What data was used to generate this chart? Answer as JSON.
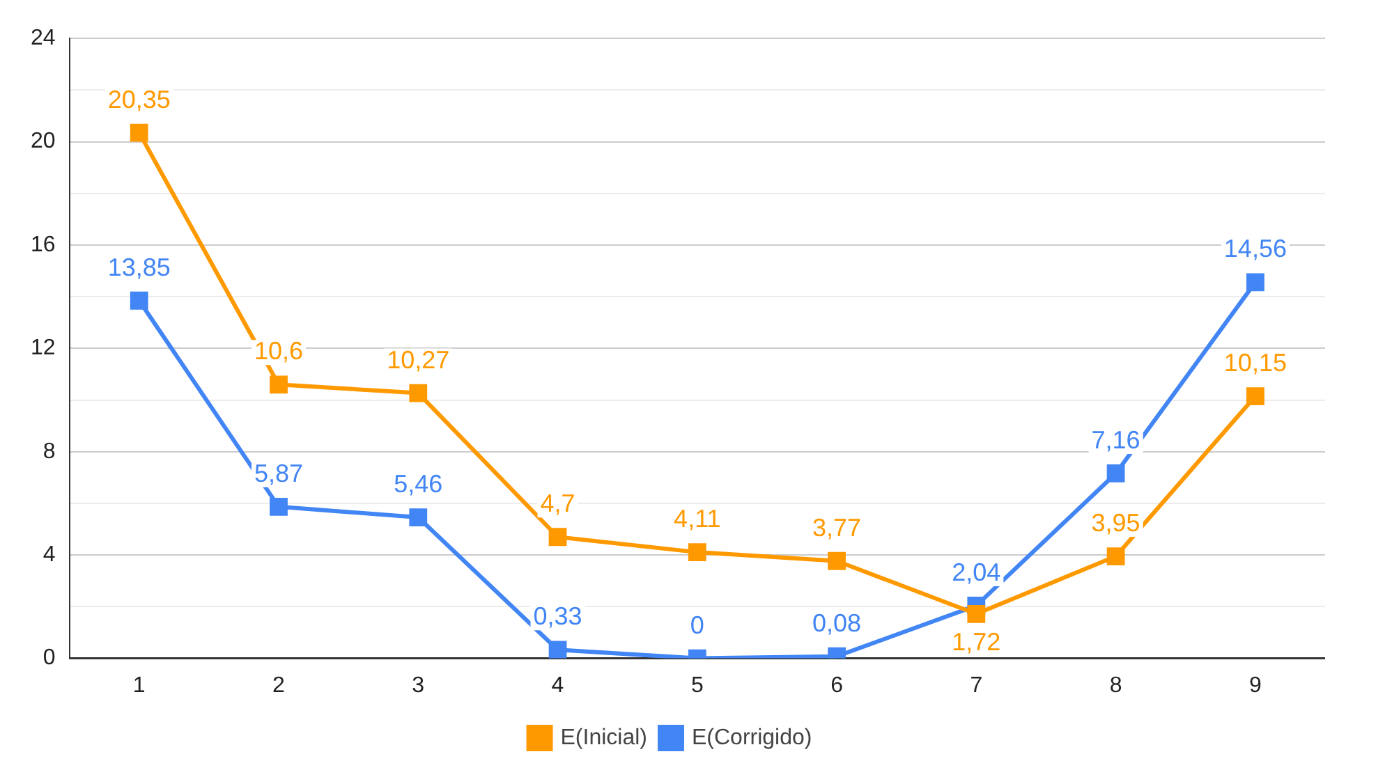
{
  "chart_data": {
    "type": "line",
    "categories": [
      "1",
      "2",
      "3",
      "4",
      "5",
      "6",
      "7",
      "8",
      "9"
    ],
    "series": [
      {
        "name": "E(Inicial)",
        "color": "#ff9900",
        "values": [
          20.35,
          10.6,
          10.27,
          4.7,
          4.11,
          3.77,
          1.72,
          3.95,
          10.15
        ],
        "value_labels": [
          "20,35",
          "10,6",
          "10,27",
          "4,7",
          "4,11",
          "3,77",
          "1,72",
          "3,95",
          "10,15"
        ]
      },
      {
        "name": "E(Corrigido)",
        "color": "#4285f4",
        "values": [
          13.85,
          5.87,
          5.46,
          0.33,
          0,
          0.08,
          2.04,
          7.16,
          14.56
        ],
        "value_labels": [
          "13,85",
          "5,87",
          "5,46",
          "0,33",
          "0",
          "0,08",
          "2,04",
          "7,16",
          "14,56"
        ]
      }
    ],
    "ylim": [
      0,
      24
    ],
    "yticks": [
      0,
      {
        "value": 2,
        "label": null
      },
      4,
      {
        "value": 6,
        "label": null
      },
      8,
      {
        "value": 10,
        "label": null
      },
      12,
      {
        "value": 14,
        "label": null
      },
      16,
      {
        "value": 18,
        "label": null
      },
      20,
      {
        "value": 22,
        "label": null
      },
      24
    ],
    "grid": "y",
    "legend": "bottom",
    "marker": "square",
    "line_style": "solid"
  }
}
